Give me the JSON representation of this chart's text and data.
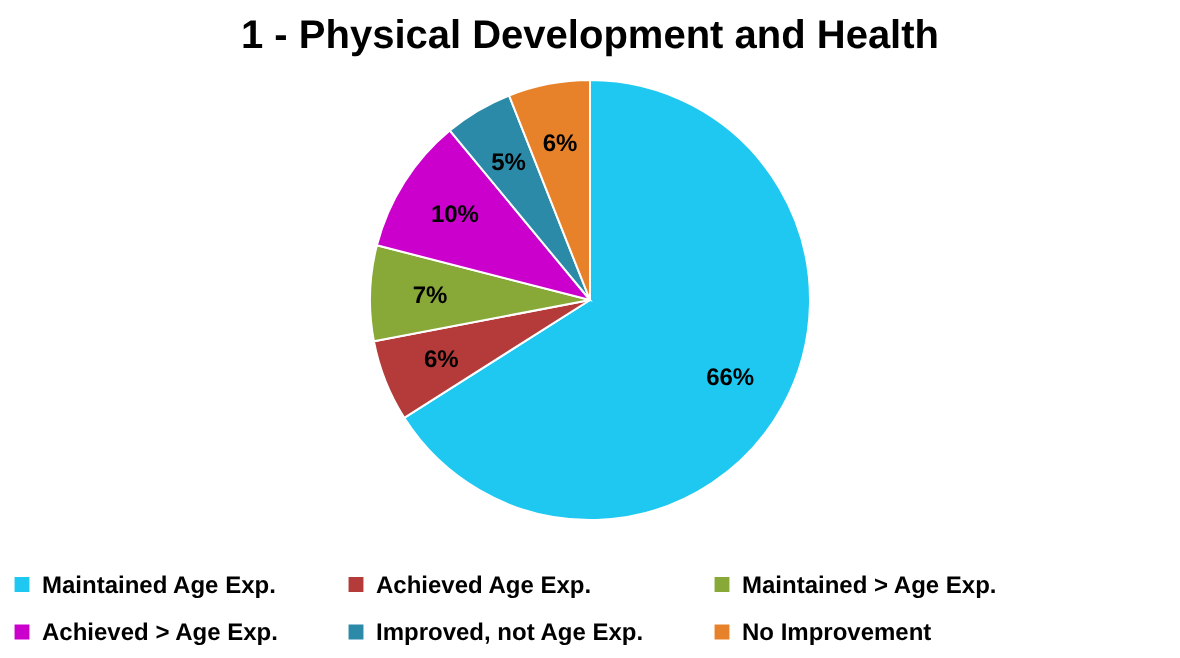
{
  "chart_data": {
    "type": "pie",
    "title": "1 - Physical Development and Health",
    "categories": [
      "Maintained Age Exp.",
      "Achieved Age Exp.",
      "Maintained > Age Exp.",
      "Achieved > Age Exp.",
      "Improved, not Age Exp.",
      "No Improvement"
    ],
    "values": [
      66,
      6,
      7,
      10,
      5,
      6
    ],
    "value_labels": [
      "66%",
      "6%",
      "7%",
      "10%",
      "5%",
      "6%"
    ],
    "colors": [
      "#1ec8f0",
      "#b53a3a",
      "#88a838",
      "#cc00cc",
      "#2a8aa8",
      "#e8822a"
    ],
    "legend": "bottom"
  }
}
